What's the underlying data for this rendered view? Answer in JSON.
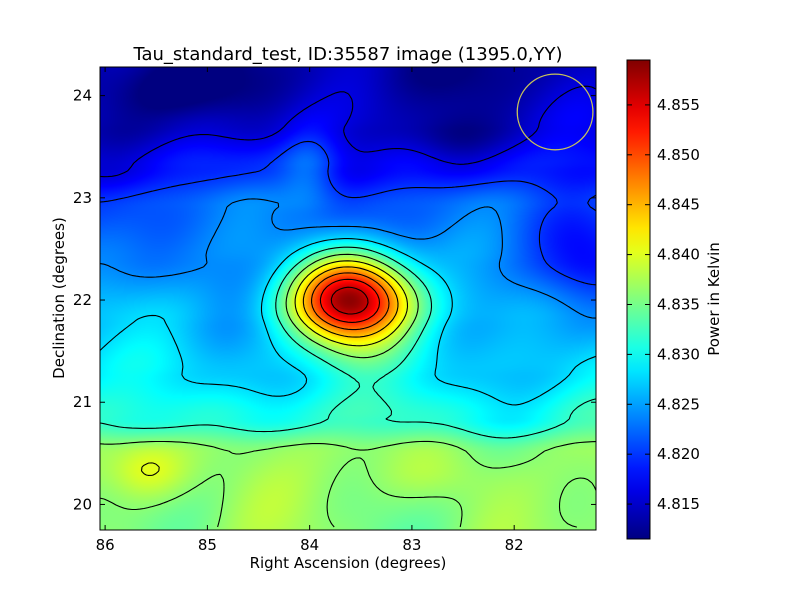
{
  "chart_data": {
    "type": "heatmap",
    "title": "Tau_standard_test, ID:35587 image (1395.0,YY)",
    "xlabel": "Right Ascension (degrees)",
    "ylabel": "Declination (degrees)",
    "xlim": [
      86.05,
      81.2
    ],
    "ylim": [
      19.75,
      24.28
    ],
    "x_direction": "decreasing",
    "xticks": [
      86,
      85,
      84,
      83,
      82
    ],
    "xtick_labels": [
      "86",
      "85",
      "84",
      "83",
      "82"
    ],
    "yticks": [
      20,
      21,
      22,
      23,
      24
    ],
    "ytick_labels": [
      "20",
      "21",
      "22",
      "23",
      "24"
    ],
    "colormap": "jet",
    "colorbar": {
      "label": "Power in Kelvin",
      "range": [
        4.8115,
        4.8595
      ],
      "ticks": [
        4.815,
        4.82,
        4.825,
        4.83,
        4.835,
        4.84,
        4.845,
        4.85,
        4.855
      ],
      "tick_labels": [
        "4.815",
        "4.820",
        "4.825",
        "4.830",
        "4.835",
        "4.840",
        "4.845",
        "4.850",
        "4.855"
      ]
    },
    "peak": {
      "ra": 83.6,
      "dec": 22.02,
      "value": 4.859
    },
    "beam_circle": {
      "ra": 81.6,
      "dec": 23.84,
      "radius_deg": 0.37,
      "color": "#c8c35a"
    },
    "contours": true,
    "grid": false,
    "background_model": [
      {
        "dec": 20.0,
        "value": 4.836
      },
      {
        "dec": 20.5,
        "value": 4.836
      },
      {
        "dec": 20.85,
        "value": 4.831
      },
      {
        "dec": 21.3,
        "value": 4.828
      },
      {
        "dec": 21.8,
        "value": 4.826
      },
      {
        "dec": 22.4,
        "value": 4.823
      },
      {
        "dec": 22.9,
        "value": 4.822
      },
      {
        "dec": 23.3,
        "value": 4.818
      },
      {
        "dec": 23.7,
        "value": 4.815
      },
      {
        "dec": 24.28,
        "value": 4.813
      }
    ],
    "features": [
      {
        "ra": 83.6,
        "dec": 22.02,
        "amplitude": 0.034,
        "sigma_ra": 0.42,
        "sigma_dec": 0.32
      },
      {
        "ra": 85.6,
        "dec": 20.35,
        "amplitude": 0.006,
        "sigma_ra": 0.3,
        "sigma_dec": 0.22
      },
      {
        "ra": 84.0,
        "dec": 23.3,
        "amplitude": 0.005,
        "sigma_ra": 0.2,
        "sigma_dec": 0.3
      },
      {
        "ra": 81.4,
        "dec": 22.45,
        "amplitude": -0.004,
        "sigma_ra": 0.35,
        "sigma_dec": 0.3
      },
      {
        "ra": 85.2,
        "dec": 24.0,
        "amplitude": -0.003,
        "sigma_ra": 0.5,
        "sigma_dec": 0.2
      },
      {
        "ra": 82.6,
        "dec": 23.55,
        "amplitude": -0.003,
        "sigma_ra": 0.3,
        "sigma_dec": 0.2
      },
      {
        "ra": 82.8,
        "dec": 20.3,
        "amplitude": 0.002,
        "sigma_ra": 0.5,
        "sigma_dec": 0.2
      }
    ]
  }
}
